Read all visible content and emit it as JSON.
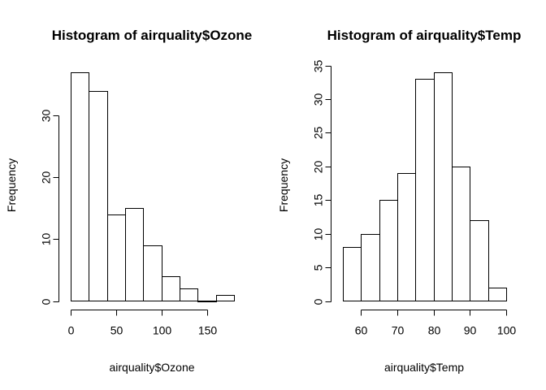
{
  "chart_data": [
    {
      "type": "bar",
      "title": "Histogram of airquality$Ozone",
      "xlabel": "airquality$Ozone",
      "ylabel": "Frequency",
      "bins": [
        {
          "x0": 0,
          "x1": 20,
          "count": 37
        },
        {
          "x0": 20,
          "x1": 40,
          "count": 34
        },
        {
          "x0": 40,
          "x1": 60,
          "count": 14
        },
        {
          "x0": 60,
          "x1": 80,
          "count": 15
        },
        {
          "x0": 80,
          "x1": 100,
          "count": 9
        },
        {
          "x0": 100,
          "x1": 120,
          "count": 4
        },
        {
          "x0": 120,
          "x1": 140,
          "count": 2
        },
        {
          "x0": 140,
          "x1": 160,
          "count": 0
        },
        {
          "x0": 160,
          "x1": 180,
          "count": 1
        }
      ],
      "xlim": [
        0,
        180
      ],
      "ylim": [
        0,
        37
      ],
      "xticks": [
        0,
        50,
        100,
        150
      ],
      "yticks": [
        0,
        10,
        20,
        30
      ],
      "grid": false
    },
    {
      "type": "bar",
      "title": "Histogram of airquality$Temp",
      "xlabel": "airquality$Temp",
      "ylabel": "Frequency",
      "bins": [
        {
          "x0": 55,
          "x1": 60,
          "count": 8
        },
        {
          "x0": 60,
          "x1": 65,
          "count": 10
        },
        {
          "x0": 65,
          "x1": 70,
          "count": 15
        },
        {
          "x0": 70,
          "x1": 75,
          "count": 19
        },
        {
          "x0": 75,
          "x1": 80,
          "count": 33
        },
        {
          "x0": 80,
          "x1": 85,
          "count": 34
        },
        {
          "x0": 85,
          "x1": 90,
          "count": 20
        },
        {
          "x0": 90,
          "x1": 95,
          "count": 12
        },
        {
          "x0": 95,
          "x1": 100,
          "count": 2
        }
      ],
      "xlim": [
        55,
        100
      ],
      "ylim": [
        0,
        35
      ],
      "xticks": [
        60,
        70,
        80,
        90,
        100
      ],
      "yticks": [
        0,
        5,
        10,
        15,
        20,
        25,
        30,
        35
      ],
      "grid": false
    }
  ]
}
